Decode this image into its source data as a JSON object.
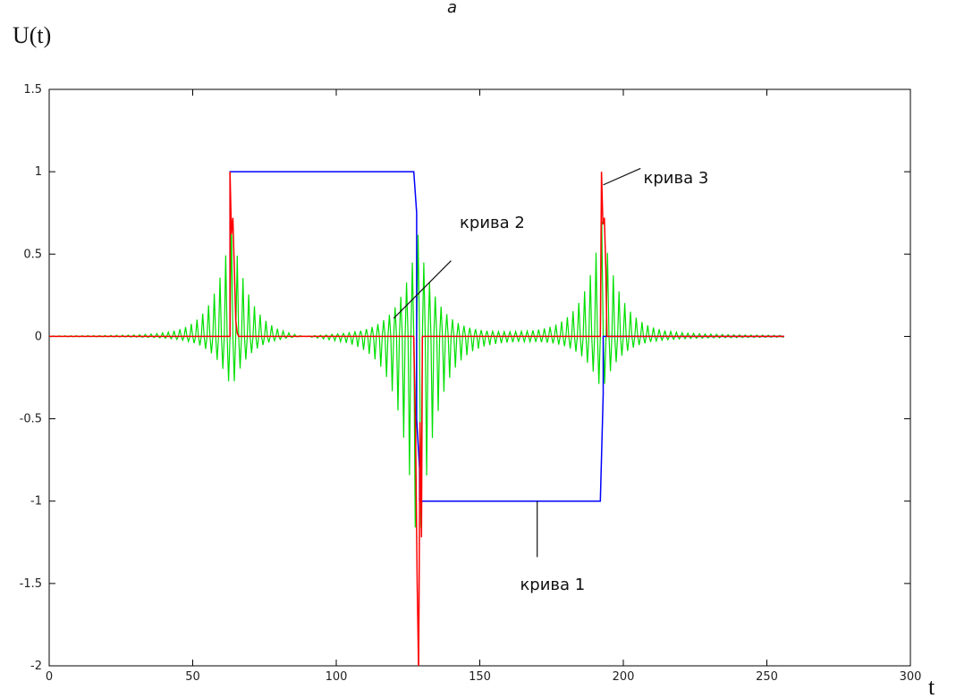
{
  "chart_data": {
    "type": "line",
    "title": "",
    "ylabel": "U(t)",
    "xlabel": "t",
    "xlim": [
      0,
      300
    ],
    "ylim": [
      -2,
      1.5
    ],
    "xticks": [
      0,
      50,
      100,
      150,
      200,
      250,
      300
    ],
    "yticks": [
      1.5,
      1,
      0.5,
      0,
      -0.5,
      -1,
      -1.5,
      -2
    ],
    "grid": false,
    "colors": {
      "curve1": "#0000ff",
      "curve2": "#00e000",
      "curve3": "#ff0000"
    },
    "series": [
      {
        "name": "крива 1",
        "color": "#0000ff",
        "x": [
          63,
          63,
          127,
          128,
          128,
          129,
          129,
          192,
          193,
          193,
          256
        ],
        "y": [
          0,
          1,
          1,
          0.75,
          -0.5,
          -0.8,
          -1,
          -1,
          -0.35,
          0,
          0
        ]
      },
      {
        "name": "крива 2",
        "color": "#00e000",
        "pulses": [
          {
            "center": 63.5,
            "peak": 0.7,
            "trough": -0.33
          },
          {
            "center": 128.5,
            "peak": 0.62,
            "trough": -1.38
          },
          {
            "center": 192.5,
            "peak": 0.7,
            "trough": -0.33
          }
        ],
        "x_range": [
          0,
          256
        ]
      },
      {
        "name": "крива 3",
        "color": "#ff0000",
        "x": [
          0,
          63,
          63,
          63.5,
          64,
          64.5,
          65,
          65.5,
          66,
          127,
          127.6,
          128.2,
          128.7,
          129.2,
          129.7,
          130,
          192,
          192.4,
          192.9,
          193.4,
          193.9,
          194.3,
          256
        ],
        "y": [
          0,
          0,
          1,
          0.62,
          0.72,
          0.42,
          0.1,
          0.02,
          0,
          0,
          -0.55,
          -1.5,
          -2.05,
          -0.52,
          -1.22,
          0,
          0,
          1.0,
          0.68,
          0.72,
          0.42,
          0,
          0
        ]
      }
    ],
    "annotations": [
      {
        "text": "крива 1",
        "x": 164,
        "y": -1.54,
        "pointer_from": [
          170,
          -1.34
        ],
        "pointer_to": [
          170,
          -1.0
        ]
      },
      {
        "text": "крива 2",
        "x": 143,
        "y": 0.66,
        "pointer_from": [
          140,
          0.46
        ],
        "pointer_to": [
          120,
          0.11
        ]
      },
      {
        "text": "крива 3",
        "x": 207,
        "y": 0.93,
        "pointer_from": [
          206,
          1.02
        ],
        "pointer_to": [
          193,
          0.92
        ]
      }
    ]
  },
  "figure": {
    "top_mark": "а"
  }
}
